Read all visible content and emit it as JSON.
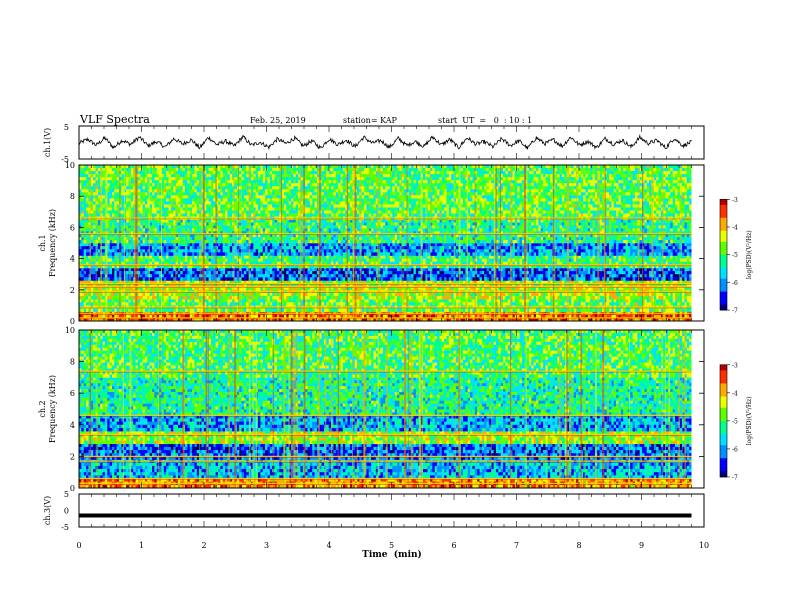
{
  "header": {
    "title": "VLF Spectra",
    "date": "Feb. 25, 2019",
    "station": "station= KAP",
    "start_ut": "start  UT  =   0  : 10 : 1"
  },
  "colors": {
    "spectrum_scale": [
      "#00007a",
      "#0000ff",
      "#0090ff",
      "#00e0ff",
      "#00ff90",
      "#60ff00",
      "#e8ff00",
      "#ffaa00",
      "#ff3000",
      "#b00000"
    ],
    "trace": "#000000"
  },
  "chart_data": [
    {
      "type": "line",
      "name": "ch1-waveform",
      "ylabel": "ch.1(V)",
      "ylim": [
        -5,
        5
      ],
      "yticks": [
        "5",
        "-5"
      ],
      "xlim": [
        0,
        10
      ],
      "x_end": 9.8,
      "samples": [
        -0.5,
        1.8,
        -1.5,
        2.5,
        -2.8,
        1.2,
        -1.0,
        3.0,
        -1.8,
        0.5,
        -2.5,
        2.2,
        -0.8,
        1.5,
        -3.0,
        2.8,
        -1.2,
        0.8,
        -2.0,
        3.2,
        -1.5,
        0.2,
        -2.6,
        1.9,
        -0.6,
        2.4,
        -1.9,
        0.9,
        -3.1,
        2.0,
        -1.1,
        1.4,
        -2.3,
        2.9,
        -0.4,
        1.1,
        -2.7,
        2.3,
        -1.6,
        0.6,
        -2.2,
        3.1,
        -1.3,
        1.7,
        -2.9,
        2.6,
        -0.9,
        0.4,
        -2.4,
        2.1,
        -1.7,
        1.0,
        -3.2,
        2.7,
        -0.7,
        1.6,
        -2.1,
        3.0,
        -1.4,
        0.7,
        -2.8,
        2.2,
        -1.0,
        1.3,
        -2.5,
        2.8,
        -0.5,
        1.2,
        -3.0,
        2.4,
        -1.8,
        0.3
      ]
    },
    {
      "type": "heatmap",
      "name": "ch1-spectrogram",
      "ylabel": "ch.1\nFrequency  (kHz)",
      "ylim": [
        0,
        10
      ],
      "yticks": [
        "0",
        "2",
        "4",
        "6",
        "8",
        "10"
      ],
      "xlim": [
        0,
        10
      ],
      "x_end": 9.8,
      "colorbar": {
        "label": "log(PSD)(V²/Hz)",
        "range": [
          -7,
          -3
        ],
        "ticks": [
          "-3",
          "-4",
          "-5",
          "-6",
          "-7"
        ]
      },
      "bands": [
        {
          "from_khz": 0.0,
          "to_khz": 0.6,
          "level": -3.6
        },
        {
          "from_khz": 0.6,
          "to_khz": 1.4,
          "level": -4.9
        },
        {
          "from_khz": 1.4,
          "to_khz": 2.6,
          "level": -4.5
        },
        {
          "from_khz": 2.6,
          "to_khz": 3.4,
          "level": -6.3
        },
        {
          "from_khz": 3.4,
          "to_khz": 4.2,
          "level": -5.1
        },
        {
          "from_khz": 4.2,
          "to_khz": 5.0,
          "level": -6.0
        },
        {
          "from_khz": 5.0,
          "to_khz": 6.5,
          "level": -5.2
        },
        {
          "from_khz": 6.5,
          "to_khz": 10.0,
          "level": -4.9
        }
      ],
      "lines_khz": [
        0.2,
        0.5,
        0.9,
        1.9,
        2.2,
        2.4,
        3.6,
        5.6,
        6.6
      ]
    },
    {
      "type": "heatmap",
      "name": "ch2-spectrogram",
      "ylabel": "ch.2\nFrequency  (kHz)",
      "ylim": [
        0,
        10
      ],
      "yticks": [
        "0",
        "2",
        "4",
        "6",
        "8",
        "10"
      ],
      "xlim": [
        0,
        10
      ],
      "x_end": 9.8,
      "colorbar": {
        "label": "log(PSD)(V²/Hz)",
        "range": [
          -7,
          -3
        ],
        "ticks": [
          "-3",
          "-4",
          "-5",
          "-6",
          "-7"
        ]
      },
      "bands": [
        {
          "from_khz": 0.0,
          "to_khz": 0.6,
          "level": -3.8
        },
        {
          "from_khz": 0.6,
          "to_khz": 1.8,
          "level": -5.8
        },
        {
          "from_khz": 1.8,
          "to_khz": 2.8,
          "level": -6.2
        },
        {
          "from_khz": 2.8,
          "to_khz": 3.6,
          "level": -4.6
        },
        {
          "from_khz": 3.6,
          "to_khz": 4.6,
          "level": -5.9
        },
        {
          "from_khz": 4.6,
          "to_khz": 7.0,
          "level": -5.3
        },
        {
          "from_khz": 7.0,
          "to_khz": 10.0,
          "level": -5.0
        }
      ],
      "lines_khz": [
        0.3,
        0.6,
        1.7,
        2.0,
        3.4,
        4.6,
        7.4
      ]
    },
    {
      "type": "line",
      "name": "ch3-waveform",
      "ylabel": "ch.3(V)",
      "ylim": [
        -5,
        5
      ],
      "yticks": [
        "5",
        "0",
        "-5"
      ],
      "xlim": [
        0,
        10
      ],
      "x_end": 9.8,
      "constant_value": -1.5
    }
  ],
  "xaxis": {
    "label": "Time  (min)",
    "ticks": [
      "0",
      "1",
      "2",
      "3",
      "4",
      "5",
      "6",
      "7",
      "8",
      "9",
      "10"
    ],
    "range": [
      0,
      10
    ]
  }
}
